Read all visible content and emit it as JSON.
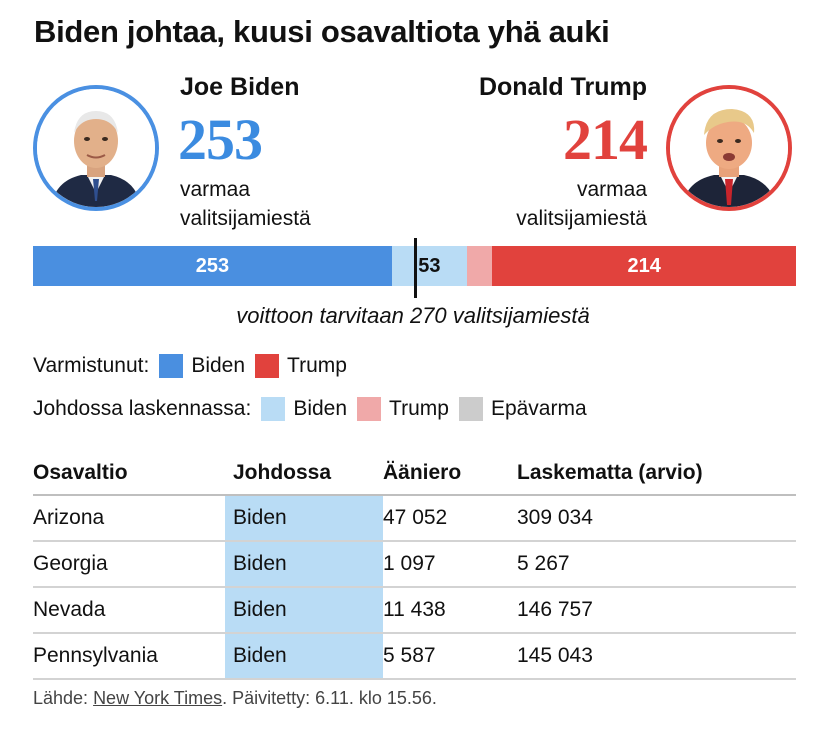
{
  "title": "Biden johtaa, kuusi osavaltiota yhä auki",
  "candidates": {
    "biden": {
      "name": "Joe Biden",
      "votes": "253",
      "sub1": "varmaa",
      "sub2": "valitsijamiestä",
      "color": "#3b8be0"
    },
    "trump": {
      "name": "Donald Trump",
      "votes": "214",
      "sub1": "varmaa",
      "sub2": "valitsijamiestä",
      "color": "#e1423d"
    }
  },
  "chart_data": {
    "type": "bar",
    "total": 538,
    "threshold": 270,
    "threshold_label": "voittoon tarvitaan 270 valitsijamiestä",
    "segments": [
      {
        "name": "Biden",
        "status": "Varmistunut",
        "value": 253,
        "label": "253",
        "color": "#4a8fe0"
      },
      {
        "name": "Biden",
        "status": "Johdossa laskennassa",
        "value": 53,
        "label": "53",
        "color": "#b9dcf5"
      },
      {
        "name": "Trump",
        "status": "Johdossa laskennassa",
        "value": 18,
        "label": "",
        "color": "#f0a9a9"
      },
      {
        "name": "Trump",
        "status": "Varmistunut",
        "value": 214,
        "label": "214",
        "color": "#e1423d"
      }
    ]
  },
  "legend": {
    "confirmed": {
      "label": "Varmistunut:",
      "items": [
        {
          "label": "Biden",
          "color": "#4a8fe0"
        },
        {
          "label": "Trump",
          "color": "#e1423d"
        }
      ]
    },
    "leading": {
      "label": "Johdossa laskennassa:",
      "items": [
        {
          "label": "Biden",
          "color": "#b9dcf5"
        },
        {
          "label": "Trump",
          "color": "#f0a9a9"
        },
        {
          "label": "Epävarma",
          "color": "#cccccc"
        }
      ]
    }
  },
  "table": {
    "headers": [
      "Osavaltio",
      "Johdossa",
      "Ääniero",
      "Laskematta (arvio)"
    ],
    "rows": [
      [
        "Arizona",
        "Biden",
        "47 052",
        "309 034"
      ],
      [
        "Georgia",
        "Biden",
        "1 097",
        "5 267"
      ],
      [
        "Nevada",
        "Biden",
        "11 438",
        "146 757"
      ],
      [
        "Pennsylvania",
        "Biden",
        "5 587",
        "145 043"
      ]
    ]
  },
  "source": {
    "prefix": "Lähde: ",
    "link": "New York Times",
    "suffix": ". Päivitetty: 6.11. klo 15.56."
  }
}
